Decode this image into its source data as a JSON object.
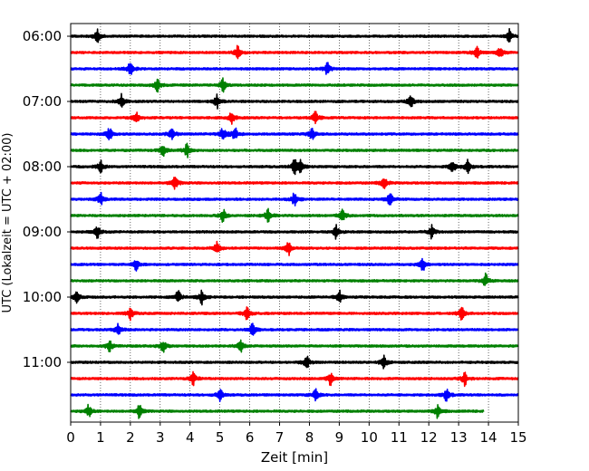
{
  "chart_data": {
    "type": "line",
    "title": "",
    "xlabel": "Zeit  [min]",
    "ylabel": "UTC (Lokalzeit = UTC + 02:00)",
    "xlim": [
      0,
      15
    ],
    "x_ticks": [
      0,
      1,
      2,
      3,
      4,
      5,
      6,
      7,
      8,
      9,
      10,
      11,
      12,
      13,
      14,
      15
    ],
    "x_tick_labels": [
      "0",
      "1",
      "2",
      "3",
      "4",
      "5",
      "6",
      "7",
      "8",
      "9",
      "10",
      "11",
      "12",
      "13",
      "14",
      "15"
    ],
    "y_tick_labels": [
      "06:00",
      "07:00",
      "08:00",
      "09:00",
      "10:00",
      "11:00"
    ],
    "trace_start_times": [
      "06:00",
      "06:15",
      "06:30",
      "06:45",
      "07:00",
      "07:15",
      "07:30",
      "07:45",
      "08:00",
      "08:15",
      "08:30",
      "08:45",
      "09:00",
      "09:15",
      "09:30",
      "09:45",
      "10:00",
      "10:15",
      "10:30",
      "10:45",
      "11:00",
      "11:15",
      "11:30",
      "11:45"
    ],
    "trace_colors": [
      "#000000",
      "#ff0000",
      "#0000ff",
      "#008000"
    ],
    "last_trace_end_min": 13.85,
    "grid": "vertical dotted",
    "series": [
      {
        "values": [
          0.9,
          14.7
        ]
      },
      {
        "values": [
          5.6,
          13.6,
          14.4
        ]
      },
      {
        "values": [
          2.0,
          8.6
        ]
      },
      {
        "values": [
          2.9,
          5.1
        ]
      },
      {
        "values": [
          1.7,
          4.9,
          11.4
        ]
      },
      {
        "values": [
          2.2,
          5.4,
          8.2
        ]
      },
      {
        "values": [
          1.3,
          3.4,
          5.1,
          5.5,
          8.1
        ]
      },
      {
        "values": [
          3.1,
          3.9
        ]
      },
      {
        "values": [
          1.0,
          7.5,
          7.7,
          12.8,
          13.3
        ]
      },
      {
        "values": [
          3.5,
          10.5
        ]
      },
      {
        "values": [
          1.0,
          7.5,
          10.7
        ]
      },
      {
        "values": [
          5.1,
          6.6,
          9.1
        ]
      },
      {
        "values": [
          0.9,
          8.9,
          12.1
        ]
      },
      {
        "values": [
          4.9,
          7.3
        ]
      },
      {
        "values": [
          2.2,
          11.8
        ]
      },
      {
        "values": [
          13.9
        ]
      },
      {
        "values": [
          0.2,
          3.6,
          4.4,
          9.0
        ]
      },
      {
        "values": [
          2.0,
          5.9,
          13.1
        ]
      },
      {
        "values": [
          1.6,
          6.1
        ]
      },
      {
        "values": [
          1.3,
          3.1,
          5.7
        ]
      },
      {
        "values": [
          7.9,
          10.5
        ]
      },
      {
        "values": [
          4.1,
          8.7,
          13.2
        ]
      },
      {
        "values": [
          5.0,
          8.2,
          12.6
        ]
      },
      {
        "values": [
          0.6,
          2.3,
          12.3
        ]
      }
    ]
  }
}
